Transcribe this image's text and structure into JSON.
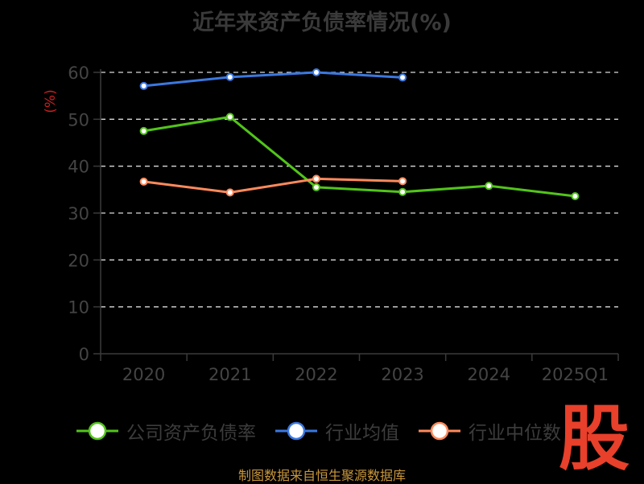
{
  "chart_data": {
    "type": "line",
    "title": "近年来资产负债率情况(%)",
    "ylabel": "(%)",
    "xlabel": "",
    "categories": [
      "2020",
      "2021",
      "2022",
      "2023",
      "2024",
      "2025Q1"
    ],
    "ylim": [
      0,
      60
    ],
    "yticks": [
      0,
      10,
      20,
      30,
      40,
      50,
      60
    ],
    "grid": "horizontal dashed",
    "legend_position": "bottom",
    "series": [
      {
        "name": "公司资产负债率",
        "color": "#52c41a",
        "values": [
          47.5,
          50.5,
          35.5,
          34.5,
          35.8,
          33.6
        ]
      },
      {
        "name": "行业均值",
        "color": "#3b78e0",
        "values": [
          57.1,
          59,
          60,
          58.9,
          null,
          null
        ]
      },
      {
        "name": "行业中位数",
        "color": "#ff8a5b",
        "values": [
          36.7,
          34.4,
          37.3,
          36.8,
          null,
          null
        ]
      }
    ]
  },
  "footer": {
    "source": "制图数据来自恒生聚源数据库"
  },
  "watermark": {
    "text": "股"
  }
}
